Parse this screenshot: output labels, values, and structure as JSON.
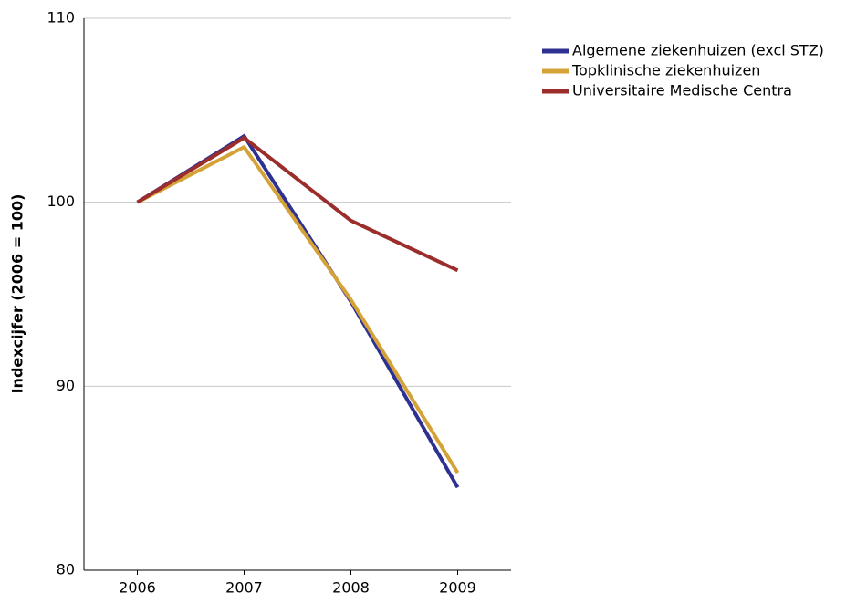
{
  "chart_data": {
    "type": "line",
    "y_label": "Indexcijfer (2006 = 100)",
    "categories": [
      "2006",
      "2007",
      "2008",
      "2009"
    ],
    "series": [
      {
        "name": "Algemene ziekenhuizen (excl STZ)",
        "color": "#2e3192",
        "values": [
          100,
          103.6,
          94.6,
          84.5
        ]
      },
      {
        "name": "Topklinische ziekenhuizen",
        "color": "#d4a237",
        "values": [
          100,
          103.0,
          94.7,
          85.3
        ]
      },
      {
        "name": "Universitaire Medische Centra",
        "color": "#9b2d2a",
        "values": [
          100,
          103.5,
          99.0,
          96.3
        ]
      }
    ],
    "ylim": [
      80,
      110
    ],
    "yticks": [
      80,
      90,
      100,
      110
    ],
    "grid": true,
    "legend": "right"
  }
}
